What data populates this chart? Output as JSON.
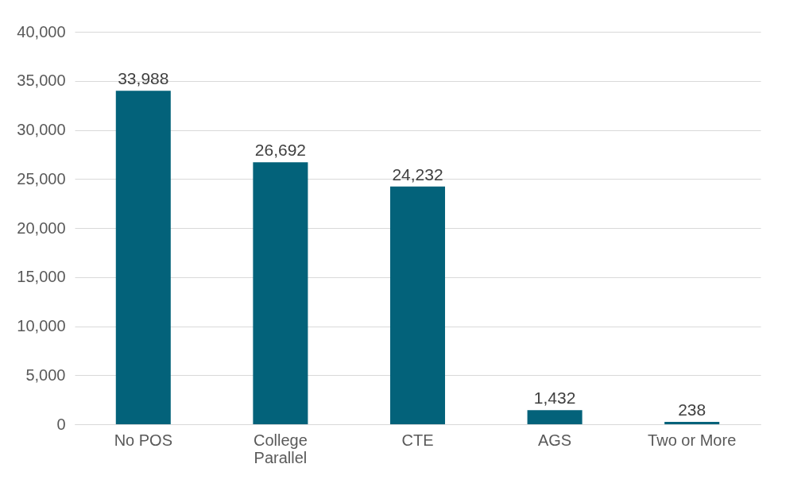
{
  "chart_data": {
    "type": "bar",
    "categories": [
      "No POS",
      "College Parallel",
      "CTE",
      "AGS",
      "Two or More"
    ],
    "values": [
      33988,
      26692,
      24232,
      1432,
      238
    ],
    "color": "#03627a",
    "ylim": [
      0,
      40000
    ],
    "yticks": [
      {
        "value": 0,
        "label": "0"
      },
      {
        "value": 5000,
        "label": "5,000"
      },
      {
        "value": 10000,
        "label": "10,000"
      },
      {
        "value": 15000,
        "label": "15,000"
      },
      {
        "value": 20000,
        "label": "20,000"
      },
      {
        "value": 25000,
        "label": "25,000"
      },
      {
        "value": 30000,
        "label": "30,000"
      },
      {
        "value": 35000,
        "label": "35,000"
      },
      {
        "value": 40000,
        "label": "40,000"
      }
    ],
    "grid": "y",
    "value_labels": [
      "33,988",
      "26,692",
      "24,232",
      "1,432",
      "238"
    ]
  }
}
